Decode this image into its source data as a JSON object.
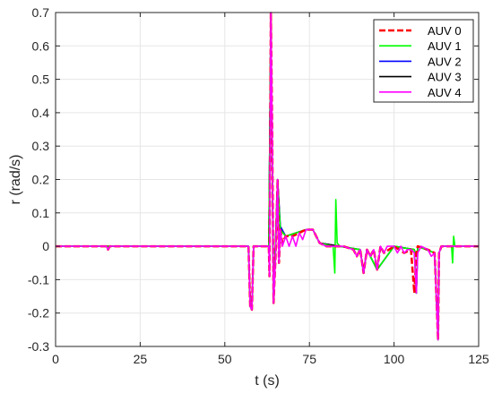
{
  "chart_data": {
    "type": "line",
    "xlabel": "t (s)",
    "ylabel": "r (rad/s)",
    "xlim": [
      0,
      125
    ],
    "ylim": [
      -0.3,
      0.7
    ],
    "xticks": [
      "0",
      "25",
      "50",
      "75",
      "100",
      "125"
    ],
    "yticks": [
      "-0.3",
      "-0.2",
      "-0.1",
      "0",
      "0.1",
      "0.2",
      "0.3",
      "0.4",
      "0.5",
      "0.6",
      "0.7"
    ],
    "xtick_values": [
      0,
      25,
      50,
      75,
      100,
      125
    ],
    "ytick_values": [
      -0.3,
      -0.2,
      -0.1,
      0,
      0.1,
      0.2,
      0.3,
      0.4,
      0.5,
      0.6,
      0.7
    ],
    "grid": true,
    "legend_position": "top-right",
    "series": [
      {
        "name": "AUV 0",
        "color": "#ff0000",
        "dash": "dashed",
        "x": [
          0,
          15,
          15.5,
          16,
          20,
          57,
          57.5,
          58,
          58.5,
          63,
          63.2,
          63.6,
          64,
          64.4,
          65,
          65.6,
          66,
          66.4,
          67,
          68,
          70,
          72,
          74,
          76,
          78,
          80,
          85,
          88,
          89,
          90,
          91,
          92,
          93,
          94,
          95,
          96,
          97,
          100,
          103,
          105,
          106,
          106.6,
          107,
          110,
          112,
          113,
          113.3,
          114,
          118,
          125
        ],
        "y": [
          0,
          0,
          -0.01,
          0,
          0,
          0,
          -0.18,
          -0.19,
          0,
          0,
          -0.09,
          0.7,
          0.35,
          -0.17,
          -0.03,
          0.2,
          -0.05,
          0.05,
          0.01,
          0.03,
          0.03,
          0.04,
          0.05,
          0.05,
          0.01,
          0,
          0,
          -0.01,
          -0.03,
          -0.01,
          -0.08,
          -0.01,
          -0.03,
          -0.01,
          -0.07,
          0,
          -0.02,
          0,
          -0.02,
          -0.01,
          -0.14,
          -0.02,
          0,
          -0.01,
          -0.02,
          -0.28,
          -0.02,
          0,
          0,
          0
        ]
      },
      {
        "name": "AUV 1",
        "color": "#00ff00",
        "dash": "solid",
        "x": [
          0,
          57,
          57.5,
          58,
          58.5,
          63,
          63.6,
          64.4,
          65.6,
          66.4,
          68,
          74,
          76,
          78,
          82,
          82.5,
          82.8,
          83.2,
          84,
          90,
          91,
          92,
          95,
          100,
          106,
          106.6,
          107,
          112,
          113,
          113.3,
          114,
          117,
          117.3,
          117.6,
          118,
          125
        ],
        "y": [
          0,
          0,
          -0.18,
          -0.18,
          0,
          0,
          0.69,
          -0.16,
          0.19,
          0.05,
          0.03,
          0.05,
          0.05,
          0.01,
          0,
          -0.08,
          0.14,
          0.01,
          0,
          -0.01,
          -0.08,
          -0.01,
          -0.07,
          0,
          -0.01,
          -0.14,
          0,
          -0.02,
          -0.28,
          -0.02,
          0,
          0,
          -0.05,
          0.03,
          0,
          0
        ]
      },
      {
        "name": "AUV 2",
        "color": "#0000ff",
        "dash": "solid",
        "x": [
          0,
          57,
          57.5,
          58,
          58.5,
          63,
          63.6,
          64.4,
          65.6,
          66.4,
          68,
          74,
          76,
          78,
          90,
          91,
          92,
          95,
          100,
          106,
          106.6,
          107,
          112,
          113,
          113.3,
          114,
          125
        ],
        "y": [
          0,
          0,
          -0.18,
          -0.19,
          0,
          0,
          0.7,
          -0.17,
          0.2,
          0.06,
          0.03,
          0.05,
          0.05,
          0.01,
          -0.01,
          -0.08,
          -0.01,
          -0.07,
          0,
          -0.01,
          -0.14,
          0,
          -0.02,
          -0.28,
          -0.02,
          0,
          0
        ]
      },
      {
        "name": "AUV 3",
        "color": "#000000",
        "dash": "solid",
        "x": [
          0,
          57,
          57.5,
          58,
          58.5,
          63,
          63.6,
          64.4,
          65.6,
          66.4,
          68,
          74,
          76,
          78,
          90,
          91,
          92,
          95,
          100,
          106,
          106.6,
          107,
          112,
          113,
          113.3,
          114,
          125
        ],
        "y": [
          0,
          0,
          -0.18,
          -0.19,
          0,
          0,
          0.7,
          -0.17,
          0.2,
          0.05,
          0.03,
          0.05,
          0.05,
          0.01,
          -0.01,
          -0.08,
          -0.01,
          -0.07,
          0,
          -0.01,
          -0.14,
          0,
          -0.02,
          -0.28,
          -0.02,
          0,
          0
        ]
      },
      {
        "name": "AUV 4",
        "color": "#ff00ff",
        "dash": "solid",
        "x": [
          0,
          15,
          15.5,
          16,
          20,
          57,
          57.5,
          58,
          58.5,
          63,
          63.2,
          63.6,
          64,
          64.4,
          65,
          65.6,
          66,
          66.4,
          67,
          68,
          69,
          70,
          71,
          72,
          73,
          74,
          75,
          76,
          78,
          80,
          85,
          88,
          89,
          90,
          91,
          92,
          93,
          94,
          95,
          96,
          97,
          98,
          100,
          101,
          102,
          103,
          104,
          105,
          106,
          106.6,
          107,
          108,
          110,
          111,
          112,
          113,
          113.3,
          114,
          116,
          118,
          125
        ],
        "y": [
          0,
          0,
          -0.01,
          0,
          0,
          0,
          -0.18,
          -0.19,
          0,
          0,
          -0.09,
          0.7,
          0.34,
          -0.17,
          -0.03,
          0.2,
          -0.05,
          0.05,
          0.0,
          0.03,
          0.0,
          0.03,
          0.0,
          0.04,
          0.02,
          0.05,
          0.05,
          0.05,
          0.01,
          0,
          0,
          -0.01,
          -0.03,
          -0.01,
          -0.08,
          -0.01,
          -0.03,
          -0.01,
          -0.07,
          0,
          -0.02,
          0,
          0,
          -0.02,
          0,
          -0.02,
          -0.01,
          -0.01,
          -0.02,
          -0.14,
          -0.02,
          0,
          -0.01,
          -0.03,
          -0.02,
          -0.28,
          -0.02,
          0,
          0,
          0,
          0
        ]
      }
    ]
  }
}
